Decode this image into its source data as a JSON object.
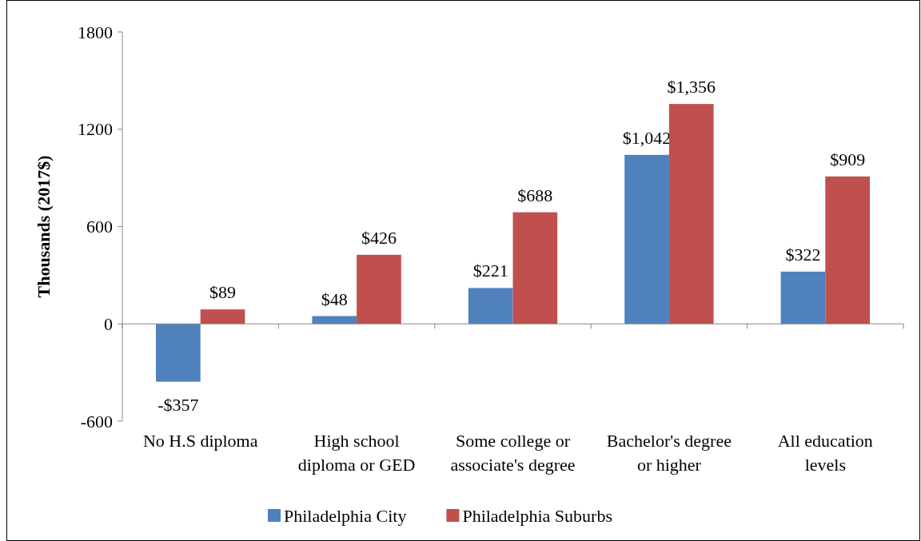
{
  "chart_data": {
    "type": "bar",
    "ylabel": "Thousands (2017$)",
    "categories": [
      "No H.S diploma",
      "High school diploma or GED",
      "Some college or associate's degree",
      "Bachelor's degree or higher",
      "All education levels"
    ],
    "series": [
      {
        "name": "Philadelphia City",
        "color": "#4f81bd",
        "values": [
          -357,
          48,
          221,
          1042,
          322
        ],
        "value_labels": [
          "-$357",
          "$48",
          "$221",
          "$1,042",
          "$322"
        ]
      },
      {
        "name": "Philadelphia Suburbs",
        "color": "#c0504d",
        "values": [
          89,
          426,
          688,
          1356,
          909
        ],
        "value_labels": [
          "$89",
          "$426",
          "$688",
          "$1,356",
          "$909"
        ]
      }
    ],
    "ylim": [
      -600,
      1800
    ],
    "yticks": [
      -600,
      0,
      600,
      1200,
      1800
    ],
    "legend": "bottom"
  }
}
